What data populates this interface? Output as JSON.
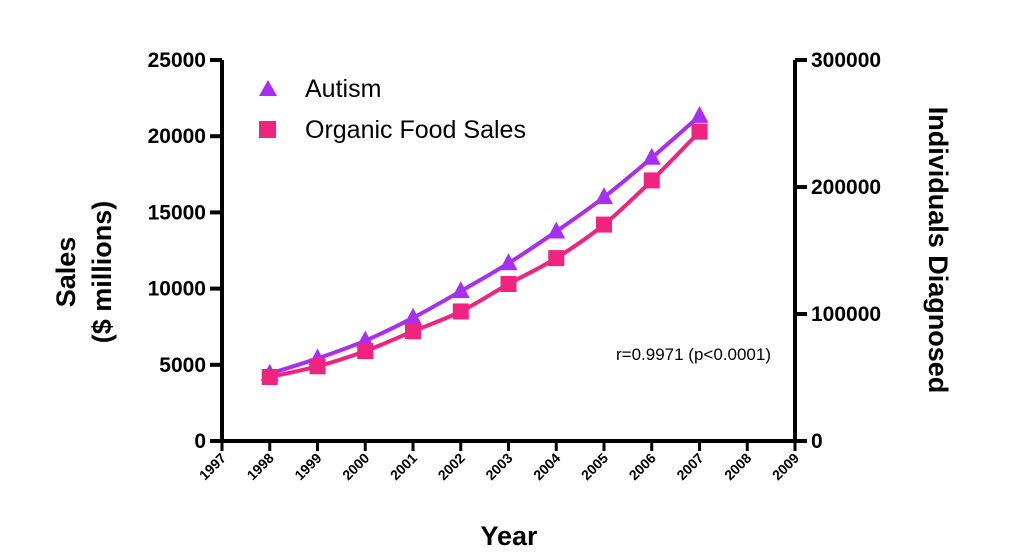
{
  "chart_data": {
    "type": "line",
    "x": [
      1998,
      1999,
      2000,
      2001,
      2002,
      2003,
      2004,
      2005,
      2006,
      2007
    ],
    "xticks": [
      "1997",
      "1998",
      "1999",
      "2000",
      "2001",
      "2002",
      "2003",
      "2004",
      "2005",
      "2006",
      "2007",
      "2008",
      "2009"
    ],
    "xlim": [
      1997,
      2009
    ],
    "xlabel": "Year",
    "ylabel_left_line1": "Sales",
    "ylabel_left_line2": "($ millions)",
    "ylim_left": [
      0,
      25000
    ],
    "yticks_left": [
      "0",
      "5000",
      "10000",
      "15000",
      "20000",
      "25000"
    ],
    "ylabel_right": "Individuals Diagnosed",
    "ylim_right": [
      0,
      300000
    ],
    "yticks_right": [
      "0",
      "100000",
      "200000",
      "300000"
    ],
    "series": [
      {
        "name": "Autism",
        "axis": "right",
        "marker": "triangle",
        "color": "#a82ef0",
        "values": [
          53000,
          65000,
          79000,
          97000,
          118000,
          140000,
          165000,
          192000,
          223000,
          256000
        ]
      },
      {
        "name": "Organic Food Sales",
        "axis": "left",
        "marker": "square",
        "color": "#f0237f",
        "values": [
          4200,
          4900,
          5900,
          7200,
          8500,
          10300,
          12000,
          14200,
          17100,
          20300
        ]
      }
    ],
    "annotation": "r=0.9971 (p<0.0001)",
    "legend_position": "top-left",
    "grid": false
  }
}
